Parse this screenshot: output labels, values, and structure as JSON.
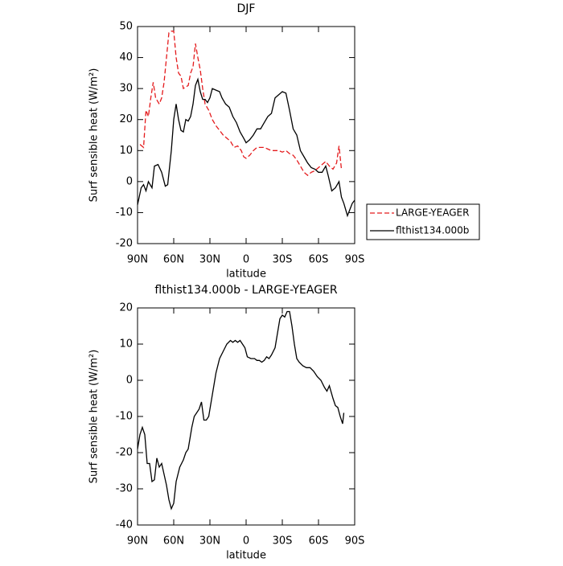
{
  "chart_data": [
    {
      "type": "line",
      "title": "DJF",
      "xlabel": "latitude",
      "ylabel": "Surf sensible heat (W/m²)",
      "xlim": [
        90,
        -90
      ],
      "xticks": [
        {
          "value": 90,
          "label": "90N"
        },
        {
          "value": 60,
          "label": "60N"
        },
        {
          "value": 30,
          "label": "30N"
        },
        0,
        {
          "value": -30,
          "label": "30S"
        },
        {
          "value": -60,
          "label": "60S"
        },
        {
          "value": -90,
          "label": "90S"
        }
      ],
      "ylim": [
        -20,
        50
      ],
      "yticks": [
        -20,
        -10,
        0,
        10,
        20,
        30,
        40,
        50
      ],
      "legend": "right",
      "series": [
        {
          "name": "LARGE-YEAGER",
          "color": "#e41a1c",
          "dash": true,
          "x": [
            88,
            85,
            83,
            81,
            79,
            77,
            75,
            72,
            70,
            68,
            66,
            64,
            62,
            60,
            58,
            56,
            54,
            52,
            50,
            48,
            46,
            44,
            42,
            40,
            38,
            36,
            34,
            31,
            28,
            25,
            22,
            19,
            16,
            13,
            10,
            7,
            4,
            2,
            0,
            -3,
            -6,
            -9,
            -12,
            -15,
            -18,
            -21,
            -24,
            -27,
            -30,
            -33,
            -36,
            -39,
            -42,
            -45,
            -48,
            -51,
            -54,
            -57,
            -60,
            -63,
            -66,
            -69,
            -72,
            -75,
            -77,
            -79
          ],
          "values": [
            12,
            11,
            23,
            21,
            27,
            32,
            27,
            25,
            27,
            32,
            40,
            48,
            48.5,
            48.5,
            40,
            35,
            34,
            30,
            30.5,
            31,
            35,
            37,
            44.5,
            40,
            36,
            30,
            25,
            23,
            20,
            18,
            16.5,
            15,
            14,
            13,
            11,
            11.5,
            10,
            8,
            7.5,
            8.5,
            10,
            11,
            11,
            11,
            10.5,
            10,
            10,
            10,
            9.5,
            10,
            9,
            8.5,
            7,
            5,
            3,
            2,
            3,
            3.5,
            4.5,
            5.5,
            6.5,
            5,
            4,
            6,
            11.5,
            4
          ]
        },
        {
          "name": "flthist134.000b",
          "color": "#000000",
          "dash": false,
          "x": [
            90,
            87,
            85,
            83,
            81,
            78,
            76,
            73,
            70,
            67,
            65,
            62,
            60,
            58,
            56,
            54,
            52,
            50,
            48,
            46,
            44,
            42,
            40,
            38,
            36,
            34,
            32,
            30,
            28,
            25,
            22,
            20,
            17,
            14,
            11,
            8,
            5,
            2,
            0,
            -3,
            -6,
            -9,
            -12,
            -15,
            -18,
            -21,
            -24,
            -27,
            -30,
            -33,
            -36,
            -39,
            -42,
            -45,
            -48,
            -51,
            -54,
            -57,
            -60,
            -63,
            -66,
            -68,
            -71,
            -74,
            -77,
            -79,
            -81,
            -84,
            -86,
            -88,
            -90
          ],
          "values": [
            -7.5,
            -2,
            -1,
            -3,
            0,
            -2,
            5,
            5.5,
            3,
            -1.5,
            -1,
            10,
            20,
            25,
            20,
            16.5,
            16,
            20,
            19.5,
            21,
            25,
            31,
            33,
            29,
            26.5,
            26.5,
            25.5,
            27,
            30,
            29.5,
            29,
            27,
            25,
            24,
            21,
            19,
            16,
            14,
            12.5,
            13.5,
            15,
            17,
            17,
            19,
            21,
            22,
            27,
            28,
            29,
            28.5,
            23,
            17,
            15,
            10,
            8,
            6,
            4.5,
            4,
            3,
            3,
            5,
            2,
            -3,
            -2,
            0,
            -5,
            -7,
            -11,
            -9,
            -7,
            -6
          ]
        }
      ]
    },
    {
      "type": "line",
      "title": "flthist134.000b - LARGE-YEAGER",
      "xlabel": "latitude",
      "ylabel": "Surf sensible heat (W/m²)",
      "xlim": [
        90,
        -90
      ],
      "xticks": [
        {
          "value": 90,
          "label": "90N"
        },
        {
          "value": 60,
          "label": "60N"
        },
        {
          "value": 30,
          "label": "30N"
        },
        0,
        {
          "value": -30,
          "label": "30S"
        },
        {
          "value": -60,
          "label": "60S"
        },
        {
          "value": -90,
          "label": "90S"
        }
      ],
      "ylim": [
        -40,
        20
      ],
      "yticks": [
        -40,
        -30,
        -20,
        -10,
        0,
        10,
        20
      ],
      "series": [
        {
          "color": "#000000",
          "dash": false,
          "x": [
            90,
            88,
            86,
            84,
            82,
            80,
            78,
            76,
            74,
            72,
            70,
            68,
            66,
            64,
            62,
            60,
            58,
            55,
            52,
            50,
            48,
            45,
            43,
            41,
            39,
            37,
            35,
            33,
            31,
            28,
            25,
            22,
            19,
            16,
            13,
            11,
            9,
            7,
            5,
            3,
            1,
            -1,
            -4,
            -7,
            -9,
            -11,
            -13,
            -15,
            -17,
            -19,
            -21,
            -24,
            -26,
            -28,
            -30,
            -32,
            -34,
            -36,
            -38,
            -40,
            -42,
            -44,
            -47,
            -50,
            -53,
            -56,
            -59,
            -62,
            -65,
            -67,
            -69,
            -72,
            -74,
            -76,
            -78,
            -80,
            -81
          ],
          "values": [
            -19,
            -15,
            -13,
            -15,
            -23,
            -23,
            -28,
            -27.5,
            -21.5,
            -24,
            -23,
            -26,
            -29,
            -33,
            -35.5,
            -34,
            -28,
            -24,
            -22,
            -20,
            -19,
            -13,
            -10,
            -9,
            -8,
            -6,
            -11,
            -11,
            -10,
            -4,
            2,
            6,
            8,
            10,
            11,
            10.5,
            11,
            10.5,
            11,
            10,
            9,
            6.5,
            6,
            6,
            5.5,
            5.5,
            5,
            5.5,
            6.5,
            6,
            7,
            9,
            13,
            17,
            18,
            17.5,
            19,
            19,
            15,
            10,
            6,
            5,
            4,
            3.5,
            3.5,
            2.5,
            1,
            0,
            -2,
            -3,
            -1.5,
            -5,
            -7,
            -7.5,
            -10,
            -12,
            -9
          ]
        }
      ]
    }
  ]
}
